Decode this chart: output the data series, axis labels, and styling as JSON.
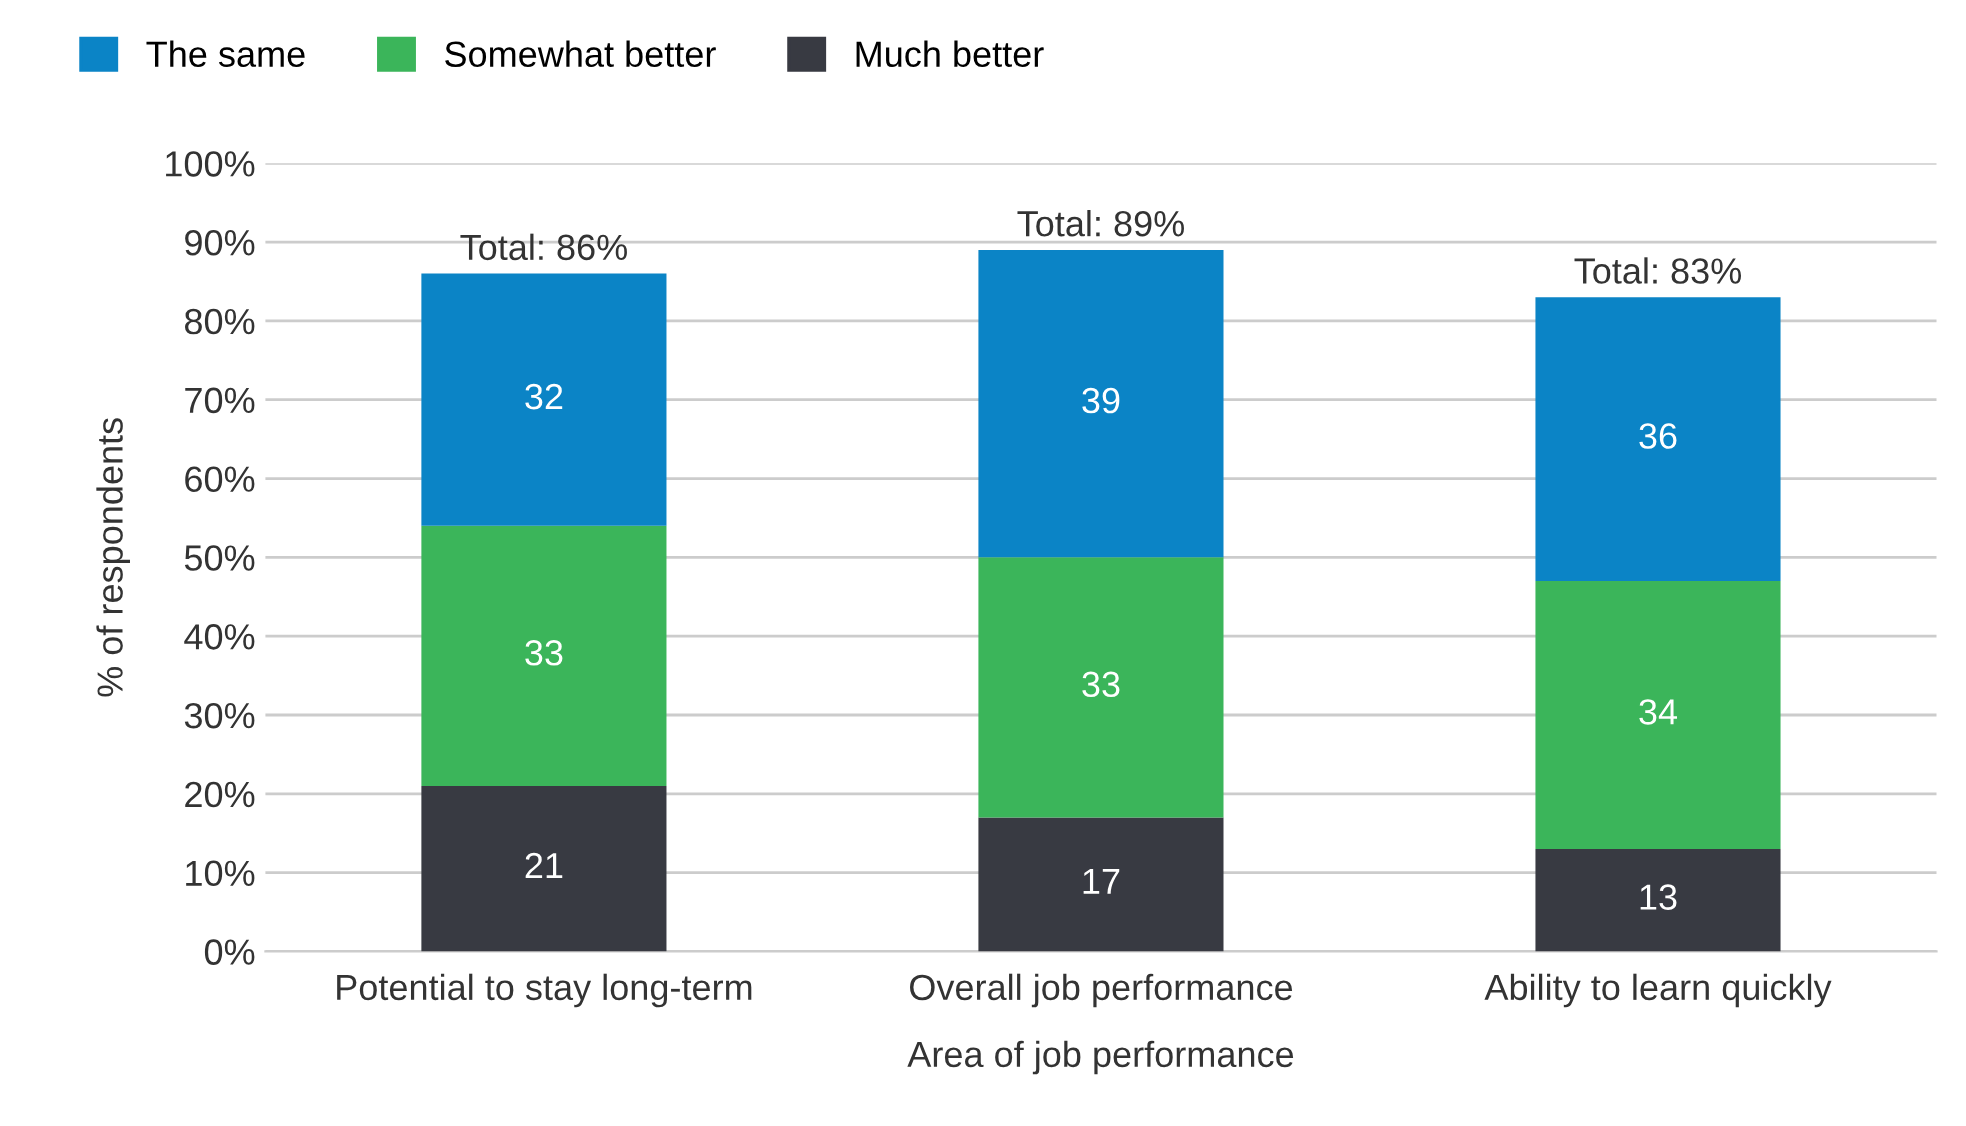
{
  "chart_data": {
    "type": "bar",
    "stacked": true,
    "xlabel": "Area of job performance",
    "ylabel": "% of respondents",
    "categories": [
      "Potential to stay long-term",
      "Overall job performance",
      "Ability to learn quickly"
    ],
    "series": [
      {
        "name": "Much better",
        "color": "#383a42",
        "values": [
          21,
          17,
          13
        ]
      },
      {
        "name": "Somewhat better",
        "color": "#3bb55a",
        "values": [
          33,
          33,
          34
        ]
      },
      {
        "name": "The same",
        "color": "#0b84c6",
        "values": [
          32,
          39,
          36
        ]
      }
    ],
    "totals": [
      "Total: 86%",
      "Total: 89%",
      "Total: 83%"
    ],
    "data_labels": true,
    "ylim": [
      0,
      100
    ],
    "yticks": [
      {
        "value": 0,
        "label": "0%"
      },
      {
        "value": 10,
        "label": "10%"
      },
      {
        "value": 20,
        "label": "20%"
      },
      {
        "value": 30,
        "label": "30%"
      },
      {
        "value": 40,
        "label": "40%"
      },
      {
        "value": 50,
        "label": "50%"
      },
      {
        "value": 60,
        "label": "60%"
      },
      {
        "value": 70,
        "label": "70%"
      },
      {
        "value": 80,
        "label": "80%"
      },
      {
        "value": 90,
        "label": "90%"
      },
      {
        "value": 100,
        "label": "100%"
      }
    ],
    "grid": "y",
    "legend": "top left"
  }
}
